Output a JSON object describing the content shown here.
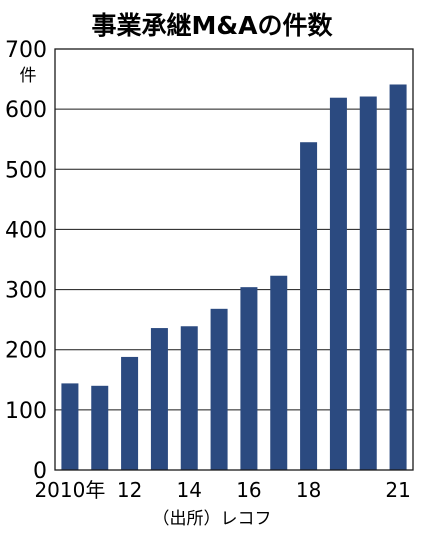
{
  "chart_data": {
    "type": "bar",
    "title": "事業承継M&Aの件数",
    "unit_label": "件",
    "source": "（出所）レコフ",
    "categories": [
      "2010",
      "2011",
      "2012",
      "2013",
      "2014",
      "2015",
      "2016",
      "2017",
      "2018",
      "2019",
      "2020",
      "2021"
    ],
    "x_tick_labels": [
      "2010年",
      "",
      "12",
      "",
      "14",
      "",
      "16",
      "",
      "18",
      "",
      "",
      "21"
    ],
    "values": [
      144,
      140,
      188,
      236,
      239,
      268,
      304,
      323,
      545,
      619,
      621,
      641
    ],
    "y_ticks": [
      "0",
      "100",
      "200",
      "300",
      "400",
      "500",
      "600",
      "700"
    ],
    "ylim": [
      0,
      700
    ],
    "grid": true,
    "bar_color": "#2b4a80",
    "grid_color": "#1a1a1a"
  }
}
